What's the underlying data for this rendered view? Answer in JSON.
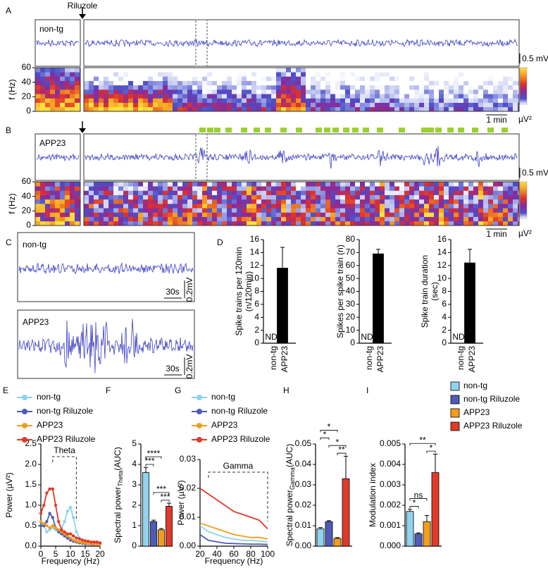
{
  "figure": {
    "panel_labels": [
      "A",
      "B",
      "C",
      "D",
      "E",
      "F",
      "G",
      "H",
      "I"
    ],
    "A": {
      "drug": "Riluzole",
      "trace_label": "non-tg",
      "amplitude_scale": "0.5 mV",
      "freq_label": "f (Hz)",
      "flim": [
        0,
        60
      ],
      "freq_ticks": [
        60,
        40,
        20,
        0
      ],
      "time_scale": "1 min",
      "colorbar_unit": "µV²"
    },
    "B": {
      "trace_label": "APP23",
      "amplitude_scale": "0.5 mV",
      "freq_label": "f (Hz)",
      "flim": [
        0,
        60
      ],
      "freq_ticks": [
        60,
        40,
        20,
        0
      ],
      "time_scale": "1 min",
      "colorbar_unit": "µV²"
    },
    "C": {
      "trace_labels": [
        "non-tg",
        "APP23"
      ],
      "time_scale": "30s",
      "amplitude_scale": "0.2mV"
    }
  },
  "chart_data": [
    {
      "type": "bar",
      "categories": [
        "non-tg",
        "APP23"
      ],
      "values": [
        null,
        11.6
      ],
      "errors": [
        null,
        3.2
      ],
      "value_labels": [
        "ND",
        null
      ],
      "color": "#000000",
      "ylabel": [
        "Spike trains per 120min",
        "(n/120min)"
      ],
      "ylim": [
        0,
        16
      ],
      "yticks": [
        0,
        2,
        4,
        6,
        8,
        10,
        12,
        14,
        16
      ]
    },
    {
      "type": "bar",
      "categories": [
        "non-tg",
        "APP23"
      ],
      "values": [
        null,
        69
      ],
      "errors": [
        null,
        3.5
      ],
      "value_labels": [
        "ND",
        null
      ],
      "color": "#000000",
      "ylabel": [
        "Spikes per spike train (n)"
      ],
      "ylim": [
        0,
        80
      ],
      "yticks": [
        0,
        10,
        20,
        30,
        40,
        50,
        60,
        70,
        80
      ]
    },
    {
      "type": "bar",
      "categories": [
        "non-tg",
        "APP23"
      ],
      "values": [
        null,
        12.4
      ],
      "errors": [
        null,
        2.1
      ],
      "value_labels": [
        "ND",
        null
      ],
      "color": "#000000",
      "ylabel": [
        "Spike train duration",
        "(sec)"
      ],
      "ylim": [
        0,
        16
      ],
      "yticks": [
        0,
        2,
        4,
        6,
        8,
        10,
        12,
        14,
        16
      ]
    },
    {
      "type": "line",
      "x": [
        0,
        1,
        2,
        3,
        4,
        5,
        6,
        7,
        8,
        9,
        10,
        11,
        12,
        13,
        14,
        15,
        16,
        17,
        18,
        19,
        20
      ],
      "series": [
        {
          "name": "non-tg",
          "color": "#8fd3f0",
          "values": [
            0.6,
            0.5,
            0.35,
            0.4,
            0.45,
            0.4,
            0.35,
            0.45,
            0.6,
            0.85,
            0.95,
            0.7,
            0.35,
            0.2,
            0.15,
            0.12,
            0.1,
            0.1,
            0.08,
            0.08,
            0.07
          ]
        },
        {
          "name": "non-tg Riluzole",
          "color": "#4e5bb8",
          "values": [
            0.5,
            0.5,
            0.6,
            0.8,
            0.7,
            0.45,
            0.35,
            0.3,
            0.25,
            0.2,
            0.15,
            0.12,
            0.1,
            0.08,
            0.07,
            0.06,
            0.06,
            0.05,
            0.05,
            0.05,
            0.05
          ]
        },
        {
          "name": "APP23",
          "color": "#f39c1f",
          "values": [
            0.6,
            0.55,
            0.5,
            0.45,
            0.5,
            0.45,
            0.4,
            0.35,
            0.3,
            0.25,
            0.2,
            0.15,
            0.12,
            0.1,
            0.09,
            0.08,
            0.07,
            0.06,
            0.06,
            0.05,
            0.05
          ]
        },
        {
          "name": "APP23 Riluzole",
          "color": "#e03a2a",
          "values": [
            0.8,
            1.0,
            1.3,
            1.4,
            1.4,
            1.0,
            0.6,
            0.4,
            0.35,
            0.3,
            0.3,
            0.25,
            0.2,
            0.18,
            0.15,
            0.13,
            0.12,
            0.1,
            0.1,
            0.1,
            0.08
          ]
        }
      ],
      "xlabel": "Frequency (Hz)",
      "ylabel": "Power (µV²)",
      "xlim": [
        0,
        20
      ],
      "xticks": [
        0,
        5,
        10,
        15,
        20
      ],
      "ylim": [
        0,
        2.5
      ],
      "yticks": [
        {
          "value": 0,
          "label": "0.0"
        },
        {
          "value": 0.5,
          "label": "0.5"
        },
        {
          "value": 1,
          "label": "1.0"
        },
        {
          "value": 1.5,
          "label": "1.5"
        },
        {
          "value": 2,
          "label": "2.0"
        },
        {
          "value": 2.5,
          "label": "2.5"
        }
      ],
      "band": {
        "label": "Theta",
        "range": [
          4,
          12
        ]
      }
    },
    {
      "type": "bar",
      "categories": [
        null,
        null,
        null,
        null
      ],
      "values": [
        3.6,
        1.2,
        0.8,
        1.95
      ],
      "errors": [
        0.25,
        0.07,
        0.06,
        0.15
      ],
      "colors": [
        "#8fd3f0",
        "#4e5bb8",
        "#f39c1f",
        "#e03a2a"
      ],
      "ylabel": "Spectral power",
      "ylabel_sub": "Theta",
      "ylabel_unit": "(AUC)",
      "ylim": [
        0,
        5
      ],
      "yticks": [
        0,
        1,
        2,
        3,
        4,
        5
      ],
      "significance": [
        "***",
        "***",
        "***",
        "****"
      ]
    },
    {
      "type": "line",
      "x": [
        20,
        30,
        40,
        50,
        60,
        70,
        80,
        90,
        100
      ],
      "series": [
        {
          "name": "non-tg",
          "color": "#8fd3f0",
          "values": [
            0.007,
            0.005,
            0.004,
            0.003,
            0.0025,
            0.002,
            0.002,
            0.0018,
            0.0015
          ]
        },
        {
          "name": "non-tg Riluzole",
          "color": "#4e5bb8",
          "values": [
            0.004,
            0.002,
            0.0015,
            0.001,
            0.0009,
            0.0008,
            0.0007,
            0.0007,
            0.0006
          ]
        },
        {
          "name": "APP23",
          "color": "#f39c1f",
          "values": [
            0.008,
            0.007,
            0.006,
            0.005,
            0.004,
            0.0035,
            0.003,
            0.003,
            0.0025
          ]
        },
        {
          "name": "APP23 Riluzole",
          "color": "#e03a2a",
          "values": [
            0.02,
            0.018,
            0.016,
            0.014,
            0.012,
            0.011,
            0.01,
            0.009,
            0.006
          ]
        }
      ],
      "xlabel": "Frequency (Hz)",
      "ylabel": "Power (µV²)",
      "xlim": [
        20,
        100
      ],
      "xticks": [
        20,
        40,
        60,
        80,
        100
      ],
      "ylim": [
        0,
        0.03
      ],
      "yticks": [
        {
          "value": 0,
          "label": "0.00"
        },
        {
          "value": 0.01,
          "label": "0.01"
        },
        {
          "value": 0.02,
          "label": "0.02"
        },
        {
          "value": 0.03,
          "label": "0.03"
        }
      ],
      "band": {
        "label": "Gamma",
        "range": [
          30,
          100
        ]
      }
    },
    {
      "type": "bar",
      "categories": [
        null,
        null,
        null,
        null
      ],
      "values": [
        0.0085,
        0.012,
        0.0038,
        0.033
      ],
      "errors": [
        0.0006,
        0.0005,
        0.0004,
        0.011
      ],
      "colors": [
        "#8fd3f0",
        "#4e5bb8",
        "#f39c1f",
        "#e03a2a"
      ],
      "ylabel": "Spectral power",
      "ylabel_sub": "Gamma",
      "ylabel_unit": "(AUC)",
      "ylim": [
        0,
        0.05
      ],
      "yticks": [
        {
          "value": 0,
          "label": "0.00"
        },
        {
          "value": 0.01,
          "label": "0.01"
        },
        {
          "value": 0.02,
          "label": "0.02"
        },
        {
          "value": 0.03,
          "label": "0.03"
        },
        {
          "value": 0.04,
          "label": "0.04"
        },
        {
          "value": 0.05,
          "label": "0.05"
        }
      ],
      "significance": [
        "**",
        "*",
        "*",
        "*"
      ]
    },
    {
      "type": "bar",
      "categories": [
        "non-tg",
        "non-tg Riluzole",
        "APP23",
        "APP23 Riluzole"
      ],
      "values": [
        0.0017,
        0.0006,
        0.0012,
        0.0036
      ],
      "errors": [
        0.0001,
        5e-05,
        0.0003,
        0.0009
      ],
      "colors": [
        "#8fd3f0",
        "#4e5bb8",
        "#f39c1f",
        "#e03a2a"
      ],
      "ylabel": "Modulation index",
      "ylim": [
        0,
        0.005
      ],
      "yticks": [
        {
          "value": 0,
          "label": "0.000"
        },
        {
          "value": 0.001,
          "label": "0.001"
        },
        {
          "value": 0.002,
          "label": "0.002"
        },
        {
          "value": 0.003,
          "label": "0.003"
        },
        {
          "value": 0.004,
          "label": "0.004"
        },
        {
          "value": 0.005,
          "label": "0.005"
        }
      ],
      "significance": [
        "*",
        "ns",
        "*",
        "**"
      ]
    }
  ]
}
